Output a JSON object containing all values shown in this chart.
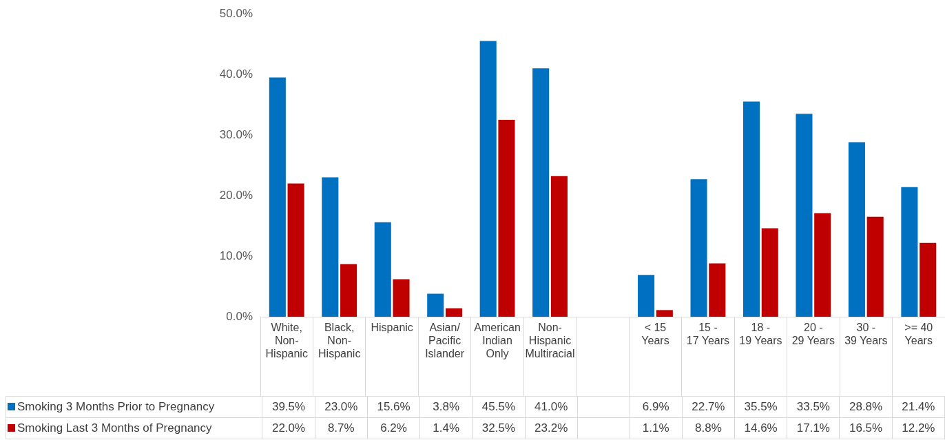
{
  "chart_data": {
    "type": "bar",
    "categories": [
      "White, Non-Hispanic",
      "Black, Non-Hispanic",
      "Hispanic",
      "Asian/ Pacific Islander",
      "American Indian Only",
      "Non-Hispanic Multiracial",
      null,
      "< 15 Years",
      "15 - 17 Years",
      "18 - 19 Years",
      "20 - 29 Years",
      "30 - 39 Years",
      ">= 40 Years"
    ],
    "series": [
      {
        "name": "Smoking 3 Months Prior to Pregnancy",
        "color": "#0070c0",
        "values": [
          39.5,
          23.0,
          15.6,
          3.8,
          45.5,
          41.0,
          null,
          6.9,
          22.7,
          35.5,
          33.5,
          28.8,
          21.4
        ],
        "value_labels": [
          "39.5%",
          "23.0%",
          "15.6%",
          "3.8%",
          "45.5%",
          "41.0%",
          null,
          "6.9%",
          "22.7%",
          "35.5%",
          "33.5%",
          "28.8%",
          "21.4%"
        ]
      },
      {
        "name": "Smoking Last 3 Months of Pregnancy",
        "color": "#c00000",
        "values": [
          22.0,
          8.7,
          6.2,
          1.4,
          32.5,
          23.2,
          null,
          1.1,
          8.8,
          14.6,
          17.1,
          16.5,
          12.2
        ],
        "value_labels": [
          "22.0%",
          "8.7%",
          "6.2%",
          "1.4%",
          "32.5%",
          "23.2%",
          null,
          "1.1%",
          "8.8%",
          "14.6%",
          "17.1%",
          "16.5%",
          "12.2%"
        ]
      }
    ],
    "ylim": [
      0,
      50
    ],
    "yticks": [
      {
        "value": 0,
        "label": "0.0%"
      },
      {
        "value": 10,
        "label": "10.0%"
      },
      {
        "value": 20,
        "label": "20.0%"
      },
      {
        "value": 30,
        "label": "30.0%"
      },
      {
        "value": 40,
        "label": "40.0%"
      },
      {
        "value": 50,
        "label": "50.0%"
      }
    ],
    "legend": "bottom"
  }
}
